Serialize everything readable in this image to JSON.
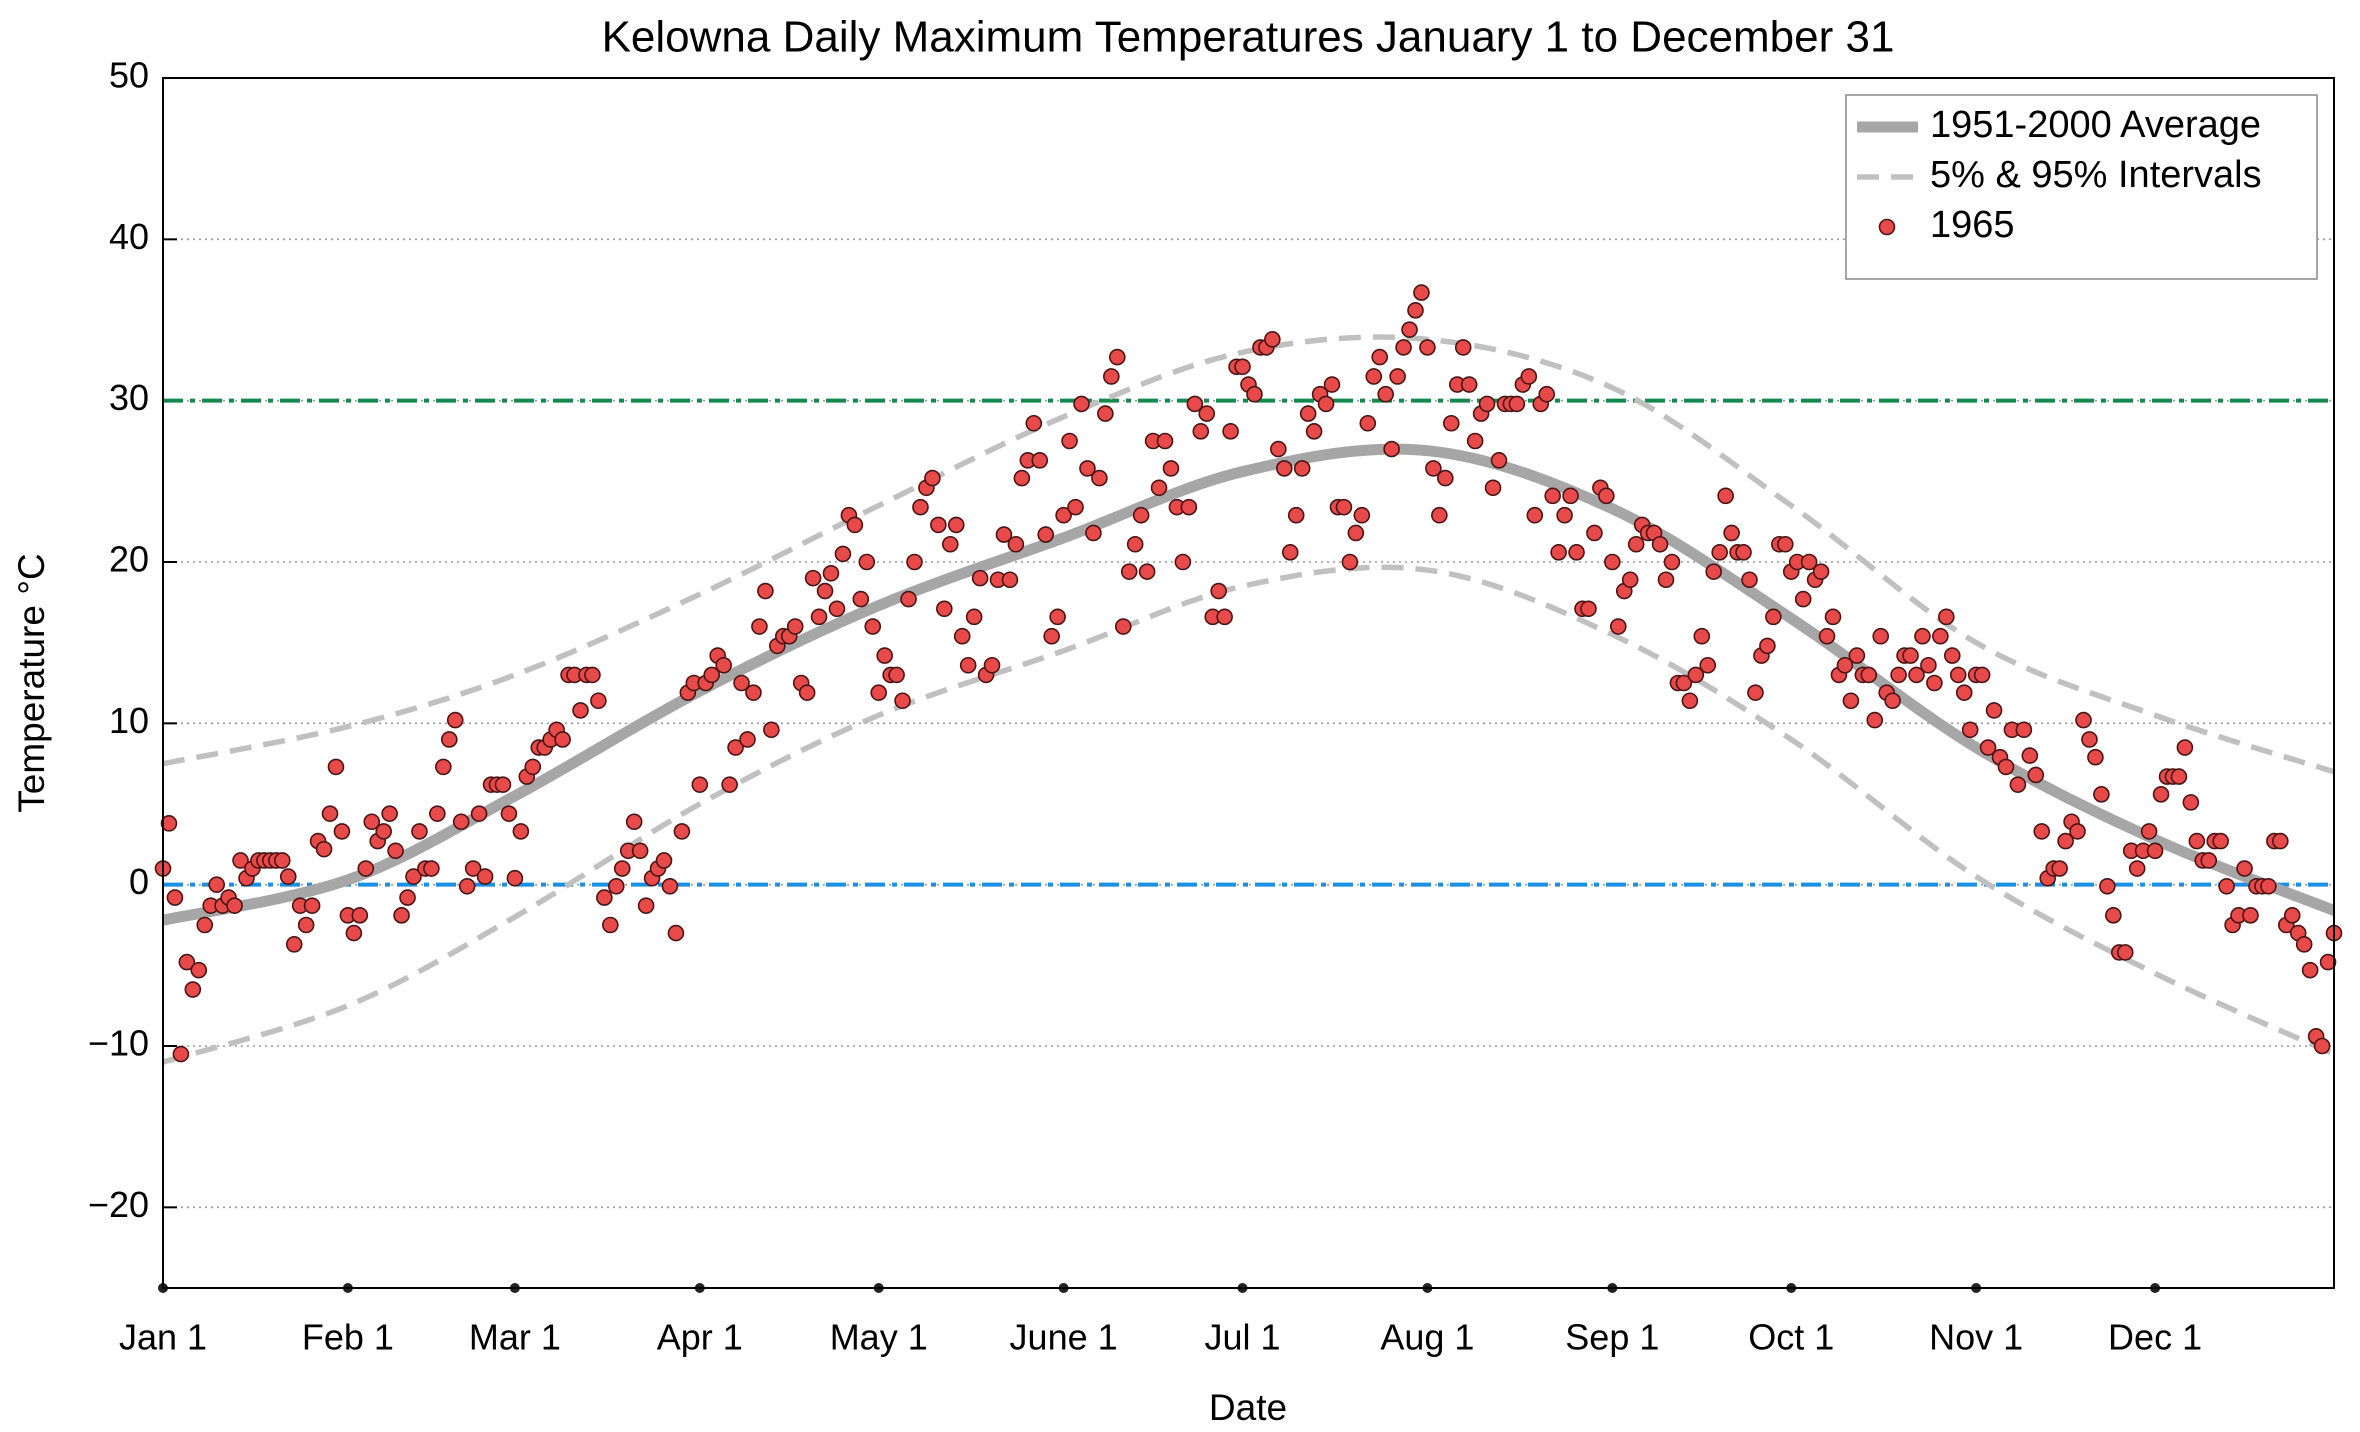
{
  "chart_data": {
    "type": "scatter",
    "title": "Kelowna Daily Maximum Temperatures January 1 to December 31",
    "x_label": "Date",
    "y_label": "Temperature °C",
    "xlim": [
      1,
      365
    ],
    "ylim": [
      -25,
      50
    ],
    "xticks": [
      {
        "value": 1,
        "label": "Jan 1"
      },
      {
        "value": 32,
        "label": "Feb 1"
      },
      {
        "value": 60,
        "label": "Mar 1"
      },
      {
        "value": 91,
        "label": "Apr 1"
      },
      {
        "value": 121,
        "label": "May 1"
      },
      {
        "value": 152,
        "label": "June 1"
      },
      {
        "value": 182,
        "label": "Jul 1"
      },
      {
        "value": 213,
        "label": "Aug 1"
      },
      {
        "value": 244,
        "label": "Sep 1"
      },
      {
        "value": 274,
        "label": "Oct 1"
      },
      {
        "value": 305,
        "label": "Nov 1"
      },
      {
        "value": 335,
        "label": "Dec 1"
      }
    ],
    "yticks": [
      {
        "value": -20,
        "label": "−20"
      },
      {
        "value": -10,
        "label": "−10"
      },
      0,
      10,
      20,
      30,
      40,
      50
    ],
    "grid": true,
    "legend": "upper right",
    "reference_lines": [
      {
        "value": 30,
        "color": "#128a4e"
      },
      {
        "value": 0,
        "color": "#1a8fe3"
      }
    ],
    "series": [
      {
        "name": "1951-2000 Average",
        "type": "line",
        "color": "#a6a6a6",
        "x": [
          1,
          32,
          60,
          91,
          121,
          152,
          182,
          213,
          244,
          274,
          305,
          335,
          365
        ],
        "values": [
          -2.2,
          0.3,
          5.5,
          12,
          17.3,
          21.5,
          25.6,
          26.9,
          23.3,
          16.5,
          8.5,
          2.8,
          -1.6
        ]
      },
      {
        "name": "5% & 95% Intervals",
        "type": "dashed",
        "color": "#c0c0c0",
        "x": [
          1,
          32,
          60,
          91,
          121,
          152,
          182,
          213,
          244,
          274,
          305,
          335,
          365
        ],
        "upper": [
          7.5,
          9.8,
          13,
          18,
          23.5,
          29,
          33,
          33.8,
          30.8,
          23.5,
          15,
          10.5,
          7
        ],
        "lower": [
          -11,
          -7.5,
          -2,
          5,
          10.5,
          14.5,
          18.5,
          19.5,
          15.5,
          9,
          0.5,
          -5.5,
          -10.5
        ]
      },
      {
        "name": "1965",
        "type": "scatter",
        "color": "#e84a4a",
        "x": [
          1,
          2,
          3,
          4,
          5,
          6,
          7,
          8,
          9,
          10,
          11,
          12,
          13,
          14,
          15,
          16,
          17,
          18,
          19,
          20,
          21,
          22,
          23,
          24,
          25,
          26,
          27,
          28,
          29,
          30,
          31,
          32,
          33,
          34,
          35,
          36,
          37,
          38,
          39,
          40,
          41,
          42,
          43,
          44,
          45,
          46,
          47,
          48,
          49,
          50,
          51,
          52,
          53,
          54,
          55,
          56,
          57,
          58,
          59,
          60,
          61,
          62,
          63,
          64,
          65,
          66,
          67,
          68,
          69,
          70,
          71,
          72,
          73,
          74,
          75,
          76,
          77,
          78,
          79,
          80,
          81,
          82,
          83,
          84,
          85,
          86,
          87,
          88,
          89,
          90,
          91,
          92,
          93,
          94,
          95,
          96,
          97,
          98,
          99,
          100,
          101,
          102,
          103,
          104,
          105,
          106,
          107,
          108,
          109,
          110,
          111,
          112,
          113,
          114,
          115,
          116,
          117,
          118,
          119,
          120,
          121,
          122,
          123,
          124,
          125,
          126,
          127,
          128,
          129,
          130,
          131,
          132,
          133,
          134,
          135,
          136,
          137,
          138,
          139,
          140,
          141,
          142,
          143,
          144,
          145,
          146,
          147,
          148,
          149,
          150,
          151,
          152,
          153,
          154,
          155,
          156,
          157,
          158,
          159,
          160,
          161,
          162,
          163,
          164,
          165,
          166,
          167,
          168,
          169,
          170,
          171,
          172,
          173,
          174,
          175,
          176,
          177,
          178,
          179,
          180,
          181,
          182,
          183,
          184,
          185,
          186,
          187,
          188,
          189,
          190,
          191,
          192,
          193,
          194,
          195,
          196,
          197,
          198,
          199,
          200,
          201,
          202,
          203,
          204,
          205,
          206,
          207,
          208,
          209,
          210,
          211,
          212,
          213,
          214,
          215,
          216,
          217,
          218,
          219,
          220,
          221,
          222,
          223,
          224,
          225,
          226,
          227,
          228,
          229,
          230,
          231,
          232,
          233,
          234,
          235,
          236,
          237,
          238,
          239,
          240,
          241,
          242,
          243,
          244,
          245,
          246,
          247,
          248,
          249,
          250,
          251,
          252,
          253,
          254,
          255,
          256,
          257,
          258,
          259,
          260,
          261,
          262,
          263,
          264,
          265,
          266,
          267,
          268,
          269,
          270,
          271,
          272,
          273,
          274,
          275,
          276,
          277,
          278,
          279,
          280,
          281,
          282,
          283,
          284,
          285,
          286,
          287,
          288,
          289,
          290,
          291,
          292,
          293,
          294,
          295,
          296,
          297,
          298,
          299,
          300,
          301,
          302,
          303,
          304,
          305,
          306,
          307,
          308,
          309,
          310,
          311,
          312,
          313,
          314,
          315,
          316,
          317,
          318,
          319,
          320,
          321,
          322,
          323,
          324,
          325,
          326,
          327,
          328,
          329,
          330,
          331,
          332,
          333,
          334,
          335,
          336,
          337,
          338,
          339,
          340,
          341,
          342,
          343,
          344,
          345,
          346,
          347,
          348,
          349,
          350,
          351,
          352,
          353,
          354,
          355,
          356,
          357,
          358,
          359,
          360,
          361,
          362,
          363,
          364,
          365
        ],
        "values": [
          1.0,
          3.8,
          -0.8,
          -10.5,
          -4.8,
          -6.5,
          -5.3,
          -2.5,
          -1.3,
          0,
          -1.3,
          -0.8,
          -1.3,
          1.5,
          0.4,
          1.0,
          1.5,
          1.5,
          1.5,
          1.5,
          1.5,
          0.5,
          -3.7,
          -1.3,
          -2.5,
          -1.3,
          2.7,
          2.2,
          4.4,
          7.3,
          3.3,
          -1.9,
          -3.0,
          -1.9,
          1.0,
          3.9,
          2.7,
          3.3,
          4.4,
          2.1,
          -1.9,
          -0.8,
          0.5,
          3.3,
          1.0,
          1.0,
          4.4,
          7.3,
          9.0,
          10.2,
          3.9,
          -0.1,
          1.0,
          4.4,
          0.5,
          6.2,
          6.2,
          6.2,
          4.4,
          0.4,
          3.3,
          6.7,
          7.3,
          8.5,
          8.5,
          9.0,
          9.6,
          9.0,
          13.0,
          13.0,
          10.8,
          13.0,
          13.0,
          11.4,
          -0.8,
          -2.5,
          -0.1,
          1.0,
          2.1,
          3.9,
          2.1,
          -1.3,
          0.4,
          1.0,
          1.5,
          -0.1,
          -3.0,
          3.3,
          11.9,
          12.5,
          6.2,
          12.5,
          13.0,
          14.2,
          13.6,
          6.2,
          8.5,
          12.5,
          9.0,
          11.9,
          16.0,
          18.2,
          9.6,
          14.8,
          15.4,
          15.4,
          16.0,
          12.5,
          11.9,
          19.0,
          16.6,
          18.2,
          19.3,
          17.1,
          20.5,
          22.9,
          22.3,
          17.7,
          20.0,
          16.0,
          11.9,
          14.2,
          13.0,
          13.0,
          11.4,
          17.7,
          20.0,
          23.4,
          24.6,
          25.2,
          22.3,
          17.1,
          21.1,
          22.3,
          15.4,
          13.6,
          16.6,
          19.0,
          13.0,
          13.6,
          18.9,
          21.7,
          18.9,
          21.1,
          25.2,
          26.3,
          28.6,
          26.3,
          21.7,
          15.4,
          16.6,
          22.9,
          27.5,
          23.4,
          29.8,
          25.8,
          21.8,
          25.2,
          29.2,
          31.5,
          32.7,
          16.0,
          19.4,
          21.1,
          22.9,
          19.4,
          27.5,
          24.6,
          27.5,
          25.8,
          23.4,
          20.0,
          23.4,
          29.8,
          28.1,
          29.2,
          16.6,
          18.2,
          16.6,
          28.1,
          32.1,
          32.1,
          31.0,
          30.4,
          33.3,
          33.3,
          33.8,
          27.0,
          25.8,
          20.6,
          22.9,
          25.8,
          29.2,
          28.1,
          30.4,
          29.8,
          31.0,
          23.4,
          23.4,
          20.0,
          21.8,
          22.9,
          28.6,
          31.5,
          32.7,
          30.4,
          27.0,
          31.5,
          33.3,
          34.4,
          35.6,
          36.7,
          33.3,
          25.8,
          22.9,
          25.2,
          28.6,
          31.0,
          33.3,
          31.0,
          27.5,
          29.2,
          29.8,
          24.6,
          26.3,
          29.8,
          29.8,
          29.8,
          31.0,
          31.5,
          22.9,
          29.8,
          30.4,
          24.1,
          20.6,
          22.9,
          24.1,
          20.6,
          17.1,
          17.1,
          21.8,
          24.6,
          24.1,
          20.0,
          16.0,
          18.2,
          18.9,
          21.1,
          22.3,
          21.8,
          21.8,
          21.1,
          18.9,
          20.0,
          12.5,
          12.5,
          11.4,
          13.0,
          15.4,
          13.6,
          19.4,
          20.6,
          24.1,
          21.8,
          20.6,
          20.6,
          18.9,
          11.9,
          14.2,
          14.8,
          16.6,
          21.1,
          21.1,
          19.4,
          20.0,
          17.7,
          20.0,
          18.9,
          19.4,
          15.4,
          16.6,
          13.0,
          13.6,
          11.4,
          14.2,
          13.0,
          13.0,
          10.2,
          15.4,
          11.9,
          11.4,
          13.0,
          14.2,
          14.2,
          13.0,
          15.4,
          13.6,
          12.5,
          15.4,
          16.6,
          14.2,
          13.0,
          11.9,
          9.6,
          13.0,
          13.0,
          8.5,
          10.8,
          7.9,
          7.3,
          9.6,
          6.2,
          9.6,
          8.0,
          6.8,
          3.3,
          0.4,
          1.0,
          1.0,
          2.7,
          3.9,
          3.3,
          10.2,
          9.0,
          7.9,
          5.6,
          -0.1,
          -1.9,
          -4.2,
          -4.2,
          2.1,
          1.0,
          2.1,
          3.3,
          2.1,
          5.6,
          6.7,
          6.7,
          6.7,
          8.5,
          5.1,
          2.7,
          1.5,
          1.5,
          2.7,
          2.7,
          -0.1,
          -2.5,
          -1.9,
          1.0,
          -1.9,
          -0.1,
          -0.1,
          -0.1,
          2.7,
          2.7,
          -2.5,
          -1.9,
          -3.0,
          -3.7,
          -5.3,
          -9.4,
          -10.0,
          -4.8,
          -3.0
        ]
      }
    ]
  }
}
